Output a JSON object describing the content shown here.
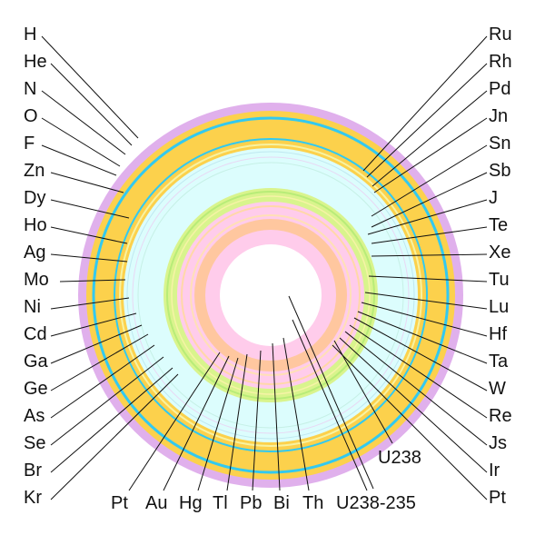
{
  "colors": {
    "background": "#ffffff",
    "outer_lilac": "#e0b0ec",
    "gold": "#fcd14c",
    "cyan": "#32c9f0",
    "pale_cyan": "#dcfdfd",
    "yellow_green": "#d9f48d",
    "pink": "#ffcceb",
    "peach": "#ffc79f",
    "center": "#ffffff",
    "leader": "#111111"
  },
  "left_labels": [
    "H",
    "He",
    "N",
    "O",
    "F",
    "Zn",
    "Dy",
    "Ho",
    "Ag",
    "Mo",
    "Ni",
    "Cd",
    "Ga",
    "Ge",
    "As",
    "Se",
    "Br",
    "Kr"
  ],
  "right_labels": [
    "Ru",
    "Rh",
    "Pd",
    "Jn",
    "Sn",
    "Sb",
    "J",
    "Te",
    "Xe",
    "Tu",
    "Lu",
    "Hf",
    "Ta",
    "W",
    "Re",
    "Js",
    "Ir",
    "Pt"
  ],
  "bottom_labels": [
    "Pt",
    "Au",
    "Hg",
    "Tl",
    "Pb",
    "Bi",
    "Th",
    "U238-235"
  ],
  "extra_labels": [
    "U238"
  ]
}
